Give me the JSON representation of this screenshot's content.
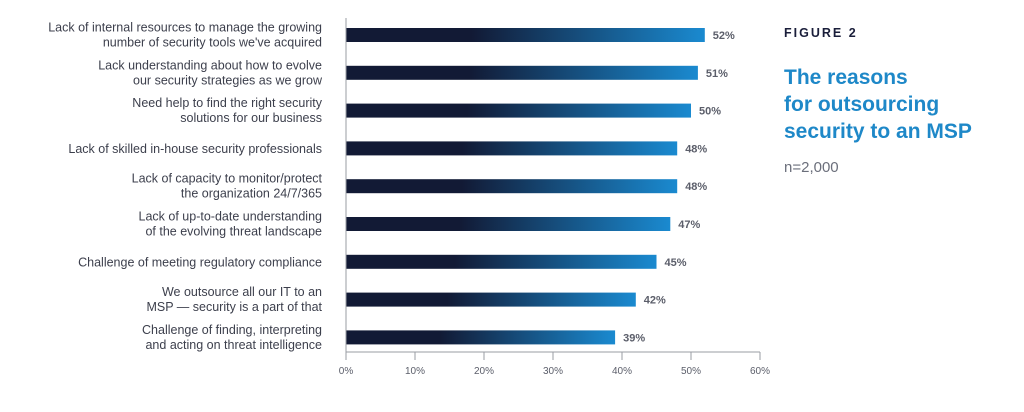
{
  "figure": {
    "label": "FIGURE 2",
    "title": "The reasons\nfor outsourcing\nsecurity to an MSP",
    "subtitle": "n=2,000"
  },
  "colors": {
    "bar_start": "#121a35",
    "bar_end": "#1a8ad0",
    "title": "#1e88c8",
    "axis": "#9a9ca3"
  },
  "chart_data": {
    "type": "bar",
    "orientation": "horizontal",
    "categories": [
      [
        "Lack of internal resources to manage the growing",
        "number of security tools we've acquired"
      ],
      [
        "Lack understanding about how to evolve",
        "our security strategies as we grow"
      ],
      [
        "Need help to find the right security",
        "solutions for our business"
      ],
      [
        "Lack of skilled in-house security professionals"
      ],
      [
        "Lack of capacity to monitor/protect",
        "the organization 24/7/365"
      ],
      [
        "Lack of up-to-date understanding",
        "of the evolving threat landscape"
      ],
      [
        "Challenge of meeting regulatory compliance"
      ],
      [
        "We outsource all our IT to an",
        "MSP — security is a part of that"
      ],
      [
        "Challenge of finding, interpreting",
        "and acting on threat intelligence"
      ]
    ],
    "values": [
      52,
      51,
      50,
      48,
      48,
      47,
      45,
      42,
      39
    ],
    "value_labels": [
      "52%",
      "51%",
      "50%",
      "48%",
      "48%",
      "47%",
      "45%",
      "42%",
      "39%"
    ],
    "xlim": [
      0,
      60
    ],
    "ticks": [
      0,
      10,
      20,
      30,
      40,
      50,
      60
    ],
    "tick_labels": [
      "0%",
      "10%",
      "20%",
      "30%",
      "40%",
      "50%",
      "60%"
    ],
    "grid": false
  }
}
